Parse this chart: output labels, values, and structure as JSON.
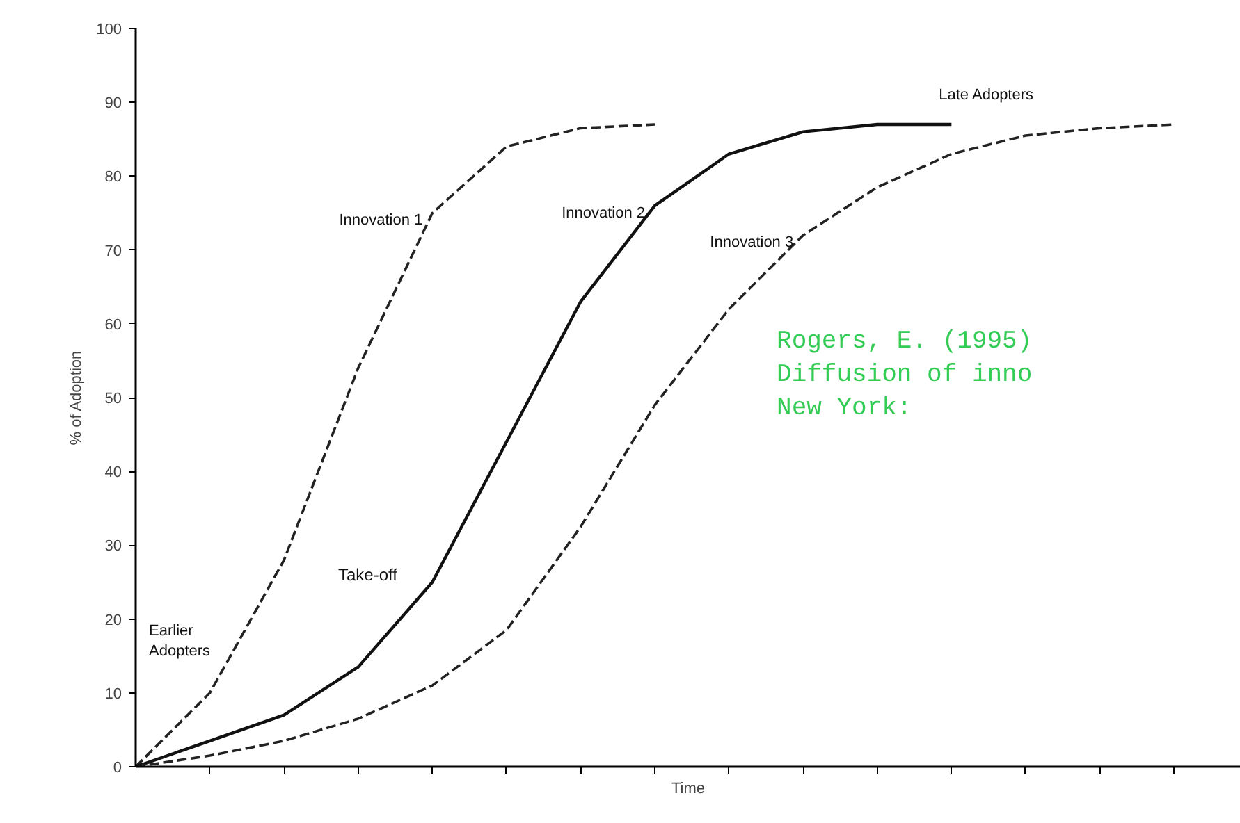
{
  "chart_data": {
    "type": "line",
    "categories": [
      null,
      null,
      null,
      null,
      null,
      null,
      null,
      null,
      null,
      null,
      null,
      null,
      null,
      null,
      null
    ],
    "series": [
      {
        "name": "Innovation 1",
        "color": "#222222",
        "line_style": "dashed",
        "values": [
          0,
          10,
          28,
          54,
          75,
          84,
          86.5,
          87,
          null,
          null,
          null,
          null,
          null,
          null,
          null
        ]
      },
      {
        "name": "Innovation 2",
        "color": "#111111",
        "line_style": "solid",
        "values": [
          0,
          3.5,
          7,
          13.5,
          25,
          44,
          63,
          76,
          83,
          86,
          87,
          87,
          null,
          null,
          null
        ]
      },
      {
        "name": "Innovation 3",
        "color": "#222222",
        "line_style": "dashed",
        "values": [
          0,
          1.5,
          3.5,
          6.5,
          11,
          18.5,
          32.5,
          49,
          62,
          72,
          78.5,
          83,
          85.5,
          86.5,
          87
        ]
      }
    ],
    "xlabel": "Time",
    "ylabel": "% of Adoption",
    "ylim": [
      0,
      100
    ],
    "yticks": [
      0,
      10,
      20,
      30,
      40,
      50,
      60,
      70,
      80,
      90,
      100
    ],
    "tick_labels": "y",
    "grid": false,
    "legend": false,
    "marker": "none",
    "annotations": [
      "Late Adopters",
      "Take-off",
      "Earlier\nAdopters",
      "Rogers, E. (1995)\nDiffusion of inno\nNew York:"
    ]
  }
}
